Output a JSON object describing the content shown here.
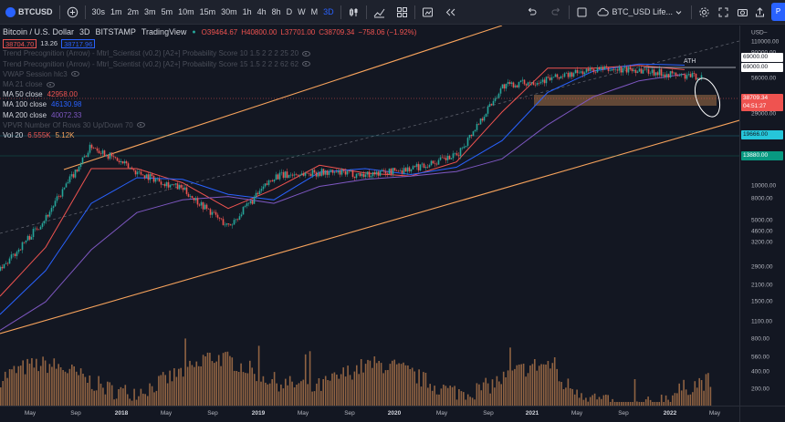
{
  "toolbar": {
    "symbol": "BTCUSD",
    "intervals": [
      "30s",
      "1m",
      "2m",
      "3m",
      "5m",
      "10m",
      "15m",
      "30m",
      "1h",
      "4h",
      "8h",
      "D",
      "W",
      "M",
      "3D"
    ],
    "active_interval": "3D",
    "layout_name": "BTC_USD Life..."
  },
  "legend": {
    "title": "Bitcoin / U.S. Dollar",
    "interval": "3D",
    "exchange": "BITSTAMP",
    "source": "TradingView",
    "open": "O39464.67",
    "high": "H40800.00",
    "low": "L37701.00",
    "close": "C38709.34",
    "change": "−758.06 (−1.92%)",
    "bid": "38704.70",
    "spread": "13.26",
    "ask": "38717.96",
    "indicators": [
      {
        "label": "Trend Precognition (Arrow) - Mtrl_Scientist (v0.2) [A2+] Probability Score 10 1.5 2 2 2 25 20",
        "value": "",
        "dim": true
      },
      {
        "label": "Trend Precognition (Arrow) - Mtrl_Scientist (v0.2) [A2+] Probability Score 15 1.5 2 2 2 62 62",
        "value": "",
        "dim": true
      },
      {
        "label": "VWAP Session hlc3",
        "value": "",
        "dim": true
      },
      {
        "label": "MA 21 close",
        "value": "",
        "dim": true
      },
      {
        "label": "MA 50 close",
        "value": "42958.00",
        "color": "#ef5350",
        "dim": false
      },
      {
        "label": "MA 100 close",
        "value": "46130.98",
        "color": "#2962ff",
        "dim": false
      },
      {
        "label": "MA 200 close",
        "value": "40072.33",
        "color": "#7e57c2",
        "dim": false
      },
      {
        "label": "VPVR Number Of Rows 30 Up/Down 70",
        "value": "",
        "dim": true
      },
      {
        "label": "Vol 20",
        "value": "6.555K",
        "value2": "5.12K",
        "color": "#ef5350",
        "dim": false
      }
    ]
  },
  "annotations": {
    "ath": "ATH"
  },
  "price_scale": {
    "ticks": [
      "110000.00",
      "90000.00",
      "56000.00",
      "29000.00",
      "10000.00",
      "8000.00",
      "5000.00",
      "4600.00",
      "3200.00",
      "2900.00",
      "2100.00",
      "1500.00",
      "1100.00",
      "800.00",
      "560.00",
      "400.00",
      "200.00"
    ],
    "currency": "USD–",
    "labels": [
      {
        "text": "69000.00",
        "bg": "#ffffff",
        "fg": "#131722"
      },
      {
        "text": "69000.00",
        "bg": "#ffffff",
        "fg": "#131722"
      },
      {
        "text": "38709.34",
        "bg": "#ef5350",
        "fg": "#ffffff"
      },
      {
        "text": "04:51:27",
        "bg": "#ef5350",
        "fg": "#ffffff"
      },
      {
        "text": "19666.00",
        "bg": "#26c6da",
        "fg": "#131722"
      },
      {
        "text": "13880.00",
        "bg": "#089981",
        "fg": "#ffffff"
      }
    ]
  },
  "time_scale": {
    "ticks": [
      {
        "label": "May",
        "year": false
      },
      {
        "label": "Sep",
        "year": false
      },
      {
        "label": "2018",
        "year": true
      },
      {
        "label": "May",
        "year": false
      },
      {
        "label": "Sep",
        "year": false
      },
      {
        "label": "2019",
        "year": true
      },
      {
        "label": "May",
        "year": false
      },
      {
        "label": "Sep",
        "year": false
      },
      {
        "label": "2020",
        "year": true
      },
      {
        "label": "May",
        "year": false
      },
      {
        "label": "Sep",
        "year": false
      },
      {
        "label": "2021",
        "year": true
      },
      {
        "label": "May",
        "year": false
      },
      {
        "label": "Sep",
        "year": false
      },
      {
        "label": "2022",
        "year": true
      },
      {
        "label": "May",
        "year": false
      }
    ]
  },
  "colors": {
    "background": "#131722",
    "up": "#26a69a",
    "down": "#ef5350",
    "channel": "#f7a35c",
    "ma50": "#ef5350",
    "ma100": "#2962ff",
    "ma200": "#7e57c2",
    "volume": "#f7a35c",
    "accent": "#2962ff"
  },
  "chart_data": {
    "type": "line",
    "title": "Bitcoin / U.S. Dollar",
    "scale": "log",
    "x": [
      "2017-05",
      "2017-09",
      "2018-01",
      "2018-05",
      "2018-09",
      "2019-01",
      "2019-05",
      "2019-09",
      "2020-01",
      "2020-05",
      "2020-09",
      "2021-01",
      "2021-05",
      "2021-09",
      "2022-01",
      "2022-05"
    ],
    "series": [
      {
        "name": "BTCUSD",
        "values": [
          1800,
          4200,
          13000,
          8500,
          6500,
          3600,
          8000,
          8500,
          8200,
          9000,
          11000,
          33000,
          37000,
          43000,
          43000,
          38709
        ]
      },
      {
        "name": "MA 50 close",
        "values": [
          1200,
          2600,
          9000,
          9000,
          7200,
          4800,
          6500,
          9500,
          8400,
          8000,
          10000,
          22000,
          44000,
          44000,
          46000,
          42958
        ]
      },
      {
        "name": "MA 100 close",
        "values": [
          900,
          1800,
          5200,
          7800,
          7600,
          6000,
          5500,
          8500,
          9000,
          8200,
          9200,
          14000,
          30000,
          42000,
          47000,
          46131
        ]
      },
      {
        "name": "MA 200 close",
        "values": [
          700,
          1100,
          2500,
          4500,
          5500,
          5800,
          5200,
          6800,
          7600,
          8000,
          8600,
          10500,
          18000,
          28000,
          36000,
          40072
        ]
      }
    ],
    "ylim": [
      150,
      150000
    ],
    "grid": false
  }
}
